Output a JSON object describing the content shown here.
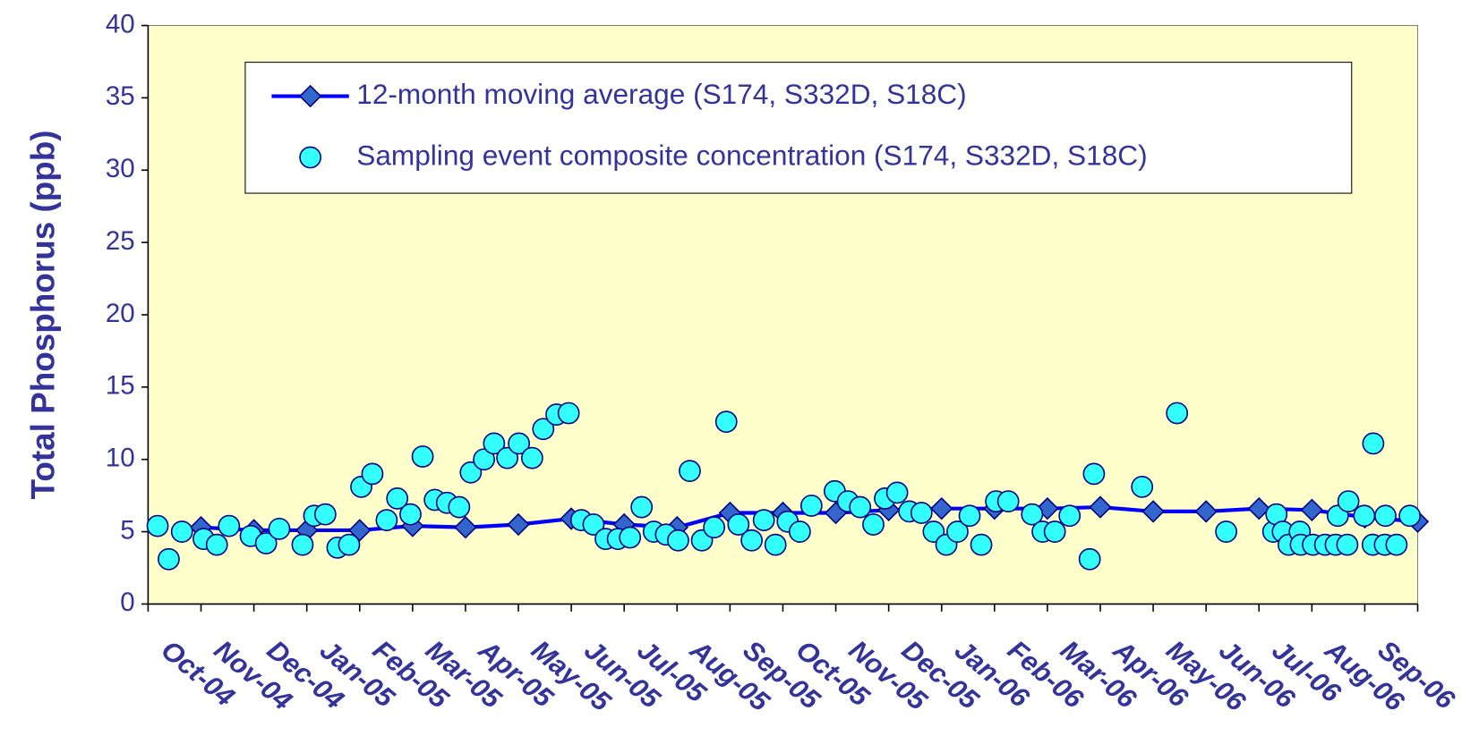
{
  "chart_data": {
    "type": "line",
    "ylabel": "Total Phosphorus (ppb)",
    "xlim": [
      0,
      24
    ],
    "ylim": [
      0,
      40
    ],
    "yticks": [
      0,
      5,
      10,
      15,
      20,
      25,
      30,
      35,
      40
    ],
    "xticks": [
      {
        "value": 0,
        "label": "Oct-04"
      },
      {
        "value": 1,
        "label": "Nov-04"
      },
      {
        "value": 2,
        "label": "Dec-04"
      },
      {
        "value": 3,
        "label": "Jan-05"
      },
      {
        "value": 4,
        "label": "Feb-05"
      },
      {
        "value": 5,
        "label": "Mar-05"
      },
      {
        "value": 6,
        "label": "Apr-05"
      },
      {
        "value": 7,
        "label": "May-05"
      },
      {
        "value": 8,
        "label": "Jun-05"
      },
      {
        "value": 9,
        "label": "Jul-05"
      },
      {
        "value": 10,
        "label": "Aug-05"
      },
      {
        "value": 11,
        "label": "Sep-05"
      },
      {
        "value": 12,
        "label": "Oct-05"
      },
      {
        "value": 13,
        "label": "Nov-05"
      },
      {
        "value": 14,
        "label": "Dec-05"
      },
      {
        "value": 15,
        "label": "Jan-06"
      },
      {
        "value": 16,
        "label": "Feb-06"
      },
      {
        "value": 17,
        "label": "Mar-06"
      },
      {
        "value": 18,
        "label": "Apr-06"
      },
      {
        "value": 19,
        "label": "May-06"
      },
      {
        "value": 20,
        "label": "Jun-06"
      },
      {
        "value": 21,
        "label": "Jul-06"
      },
      {
        "value": 22,
        "label": "Aug-06"
      },
      {
        "value": 23,
        "label": "Sep-06"
      }
    ],
    "grid": false,
    "background": "#ffffcc",
    "legend": "top",
    "series": [
      {
        "name": "12-month moving average (S174, S332D, S18C)",
        "style": "line",
        "color": "#0000ff",
        "marker_color": "#3366cc",
        "x": [
          1,
          2,
          3,
          4,
          5,
          6,
          7,
          8,
          9,
          10,
          11,
          12,
          13,
          14,
          15,
          16,
          17,
          18,
          19,
          20,
          21,
          22,
          23,
          24
        ],
        "values": [
          5.3,
          5.1,
          5.1,
          5.1,
          5.4,
          5.3,
          5.5,
          5.9,
          5.5,
          5.3,
          6.3,
          6.3,
          6.3,
          6.5,
          6.6,
          6.6,
          6.6,
          6.7,
          6.4,
          6.4,
          6.6,
          6.5,
          6.0,
          5.7
        ]
      },
      {
        "name": "Sampling event composite concentration (S174, S332D, S18C)",
        "style": "scatter",
        "color": "#33ffff",
        "x": [
          0.18,
          0.39,
          0.64,
          1.05,
          1.3,
          1.53,
          1.94,
          2.23,
          2.48,
          2.92,
          3.14,
          3.35,
          3.58,
          3.8,
          4.03,
          4.24,
          4.51,
          4.71,
          4.96,
          5.19,
          5.42,
          5.65,
          5.88,
          6.1,
          6.35,
          6.54,
          6.79,
          7.01,
          7.26,
          7.47,
          7.72,
          7.95,
          8.19,
          8.42,
          8.65,
          8.88,
          9.11,
          9.33,
          9.56,
          9.79,
          10.02,
          10.24,
          10.47,
          10.7,
          10.93,
          11.16,
          11.41,
          11.64,
          11.86,
          12.09,
          12.32,
          12.54,
          12.98,
          13.23,
          13.46,
          13.71,
          13.93,
          14.16,
          14.39,
          14.62,
          14.85,
          15.09,
          15.3,
          15.53,
          15.75,
          16.03,
          16.26,
          16.71,
          16.91,
          17.14,
          17.42,
          17.8,
          17.88,
          18.79,
          19.45,
          20.38,
          21.27,
          21.33,
          21.45,
          21.56,
          21.77,
          21.79,
          22.02,
          22.25,
          22.45,
          22.49,
          22.67,
          22.69,
          22.99,
          23.15,
          23.16,
          23.38,
          23.39,
          23.6,
          23.85
        ],
        "values": [
          5.4,
          3.1,
          5.0,
          4.5,
          4.1,
          5.4,
          4.7,
          4.2,
          5.2,
          4.1,
          6.1,
          6.2,
          3.9,
          4.1,
          8.1,
          9.0,
          5.8,
          7.3,
          6.2,
          10.2,
          7.2,
          7.0,
          6.7,
          9.1,
          10.0,
          11.1,
          10.1,
          11.1,
          10.1,
          12.1,
          13.1,
          13.2,
          5.8,
          5.5,
          4.5,
          4.5,
          4.6,
          6.7,
          5.0,
          4.8,
          4.4,
          9.2,
          4.4,
          5.3,
          12.6,
          5.5,
          4.4,
          5.8,
          4.1,
          5.7,
          5.0,
          6.8,
          7.8,
          7.1,
          6.7,
          5.5,
          7.3,
          7.7,
          6.4,
          6.3,
          5.0,
          4.1,
          5.0,
          6.1,
          4.1,
          7.1,
          7.1,
          6.2,
          5.0,
          5.0,
          6.1,
          3.1,
          9.0,
          8.1,
          13.2,
          5.0,
          5.0,
          6.2,
          5.0,
          4.1,
          5.0,
          4.1,
          4.1,
          4.1,
          4.1,
          6.1,
          4.1,
          7.1,
          6.1,
          4.1,
          11.1,
          4.1,
          6.1,
          4.1,
          6.1
        ]
      }
    ]
  }
}
